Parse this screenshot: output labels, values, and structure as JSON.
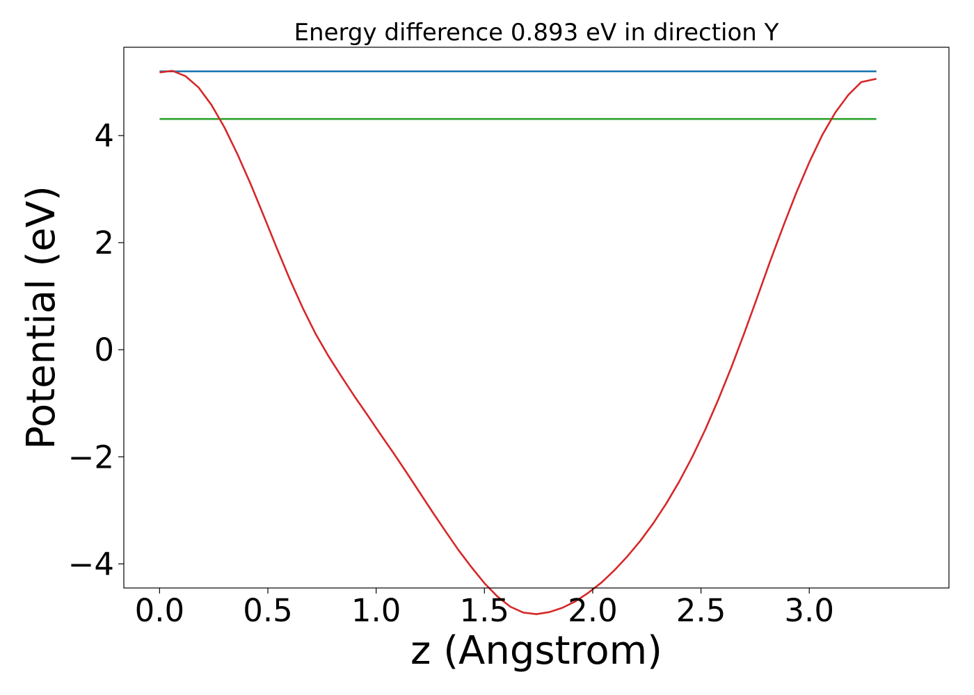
{
  "chart_data": {
    "type": "line",
    "title": "Energy difference 0.893 eV in direction Y",
    "xlabel": "z (Angstrom)",
    "ylabel": "Potential (eV)",
    "xlim": [
      -0.165,
      3.645
    ],
    "ylim": [
      -4.45,
      5.65
    ],
    "xticks": [
      0.0,
      0.5,
      1.0,
      1.5,
      2.0,
      2.5,
      3.0
    ],
    "xtick_labels": [
      "0.0",
      "0.5",
      "1.0",
      "1.5",
      "2.0",
      "2.5",
      "3.0"
    ],
    "yticks": [
      -4,
      -2,
      0,
      2,
      4
    ],
    "ytick_labels": [
      "−4",
      "−2",
      "0",
      "2",
      "4"
    ],
    "grid": false,
    "series": [
      {
        "color": "#1f77b4",
        "x": [
          0.0,
          3.31
        ],
        "y": [
          5.2,
          5.2
        ]
      },
      {
        "color": "#2ca02c",
        "x": [
          0.0,
          3.31
        ],
        "y": [
          4.31,
          4.31
        ]
      },
      {
        "color": "#d62728",
        "x": [
          0.0,
          0.06,
          0.12,
          0.18,
          0.24,
          0.3,
          0.36,
          0.42,
          0.48,
          0.54,
          0.6,
          0.66,
          0.72,
          0.78,
          0.84,
          0.9,
          0.96,
          1.02,
          1.08,
          1.14,
          1.2,
          1.26,
          1.32,
          1.38,
          1.44,
          1.5,
          1.56,
          1.62,
          1.68,
          1.74,
          1.8,
          1.86,
          1.92,
          1.98,
          2.04,
          2.1,
          2.16,
          2.22,
          2.28,
          2.34,
          2.4,
          2.46,
          2.52,
          2.58,
          2.64,
          2.7,
          2.76,
          2.82,
          2.88,
          2.94,
          3.0,
          3.06,
          3.12,
          3.18,
          3.24,
          3.31
        ],
        "y": [
          5.18,
          5.21,
          5.11,
          4.9,
          4.57,
          4.15,
          3.65,
          3.1,
          2.51,
          1.91,
          1.33,
          0.79,
          0.3,
          -0.12,
          -0.5,
          -0.87,
          -1.22,
          -1.58,
          -1.93,
          -2.29,
          -2.66,
          -3.03,
          -3.39,
          -3.74,
          -4.06,
          -4.36,
          -4.61,
          -4.8,
          -4.91,
          -4.94,
          -4.9,
          -4.82,
          -4.7,
          -4.54,
          -4.35,
          -4.12,
          -3.86,
          -3.57,
          -3.24,
          -2.87,
          -2.46,
          -2.0,
          -1.49,
          -0.93,
          -0.33,
          0.31,
          0.98,
          1.66,
          2.31,
          2.93,
          3.5,
          4.01,
          4.43,
          4.76,
          5.0,
          5.06
        ]
      }
    ]
  }
}
